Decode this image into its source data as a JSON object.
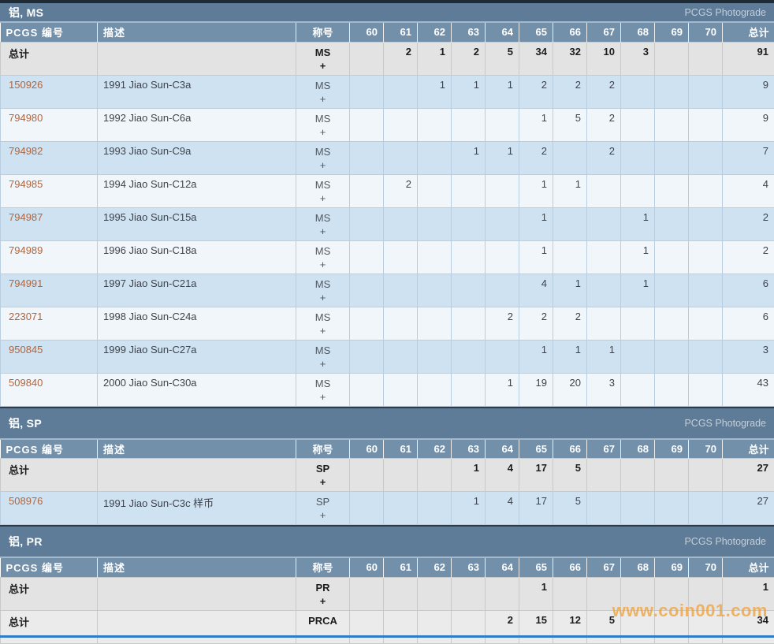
{
  "photograde_label": "PCGS Photograde",
  "watermark": "www.coin001.com",
  "total_row_label": "总计",
  "table_headers": {
    "pcgs_number": "PCGS 编号",
    "description": "描述",
    "designation": "称号",
    "grades": [
      "60",
      "61",
      "62",
      "63",
      "64",
      "65",
      "66",
      "67",
      "68",
      "69",
      "70"
    ],
    "total": "总计"
  },
  "colors": {
    "title_bar": "#5e7c97",
    "header_row": "#7390ab",
    "row_blue": "#cfe2f1",
    "row_pale": "#f1f6fa",
    "row_total": "#e3e3e3",
    "link": "#b0653e",
    "watermark": "#f0a33c",
    "bottom_edge": "#2f7cc4"
  },
  "sections": [
    {
      "title": "铝, MS",
      "rows": [
        {
          "pcgs_no": "总计",
          "is_total": true,
          "description": "",
          "designation": "MS",
          "designation_suffix": "+",
          "grades": [
            "",
            "2",
            "1",
            "2",
            "5",
            "34",
            "32",
            "10",
            "3",
            "",
            ""
          ],
          "total": "91"
        },
        {
          "pcgs_no": "150926",
          "is_total": false,
          "description": "1991 Jiao Sun-C3a",
          "designation": "MS",
          "designation_suffix": "+",
          "grades": [
            "",
            "",
            "1",
            "1",
            "1",
            "2",
            "2",
            "2",
            "",
            "",
            ""
          ],
          "total": "9"
        },
        {
          "pcgs_no": "794980",
          "is_total": false,
          "description": "1992 Jiao Sun-C6a",
          "designation": "MS",
          "designation_suffix": "+",
          "grades": [
            "",
            "",
            "",
            "",
            "",
            "1",
            "5",
            "2",
            "",
            "",
            ""
          ],
          "total": "9"
        },
        {
          "pcgs_no": "794982",
          "is_total": false,
          "description": "1993 Jiao Sun-C9a",
          "designation": "MS",
          "designation_suffix": "+",
          "grades": [
            "",
            "",
            "",
            "1",
            "1",
            "2",
            "",
            "2",
            "",
            "",
            ""
          ],
          "total": "7"
        },
        {
          "pcgs_no": "794985",
          "is_total": false,
          "description": "1994 Jiao Sun-C12a",
          "designation": "MS",
          "designation_suffix": "+",
          "grades": [
            "",
            "2",
            "",
            "",
            "",
            "1",
            "1",
            "",
            "",
            "",
            ""
          ],
          "total": "4"
        },
        {
          "pcgs_no": "794987",
          "is_total": false,
          "description": "1995 Jiao Sun-C15a",
          "designation": "MS",
          "designation_suffix": "+",
          "grades": [
            "",
            "",
            "",
            "",
            "",
            "1",
            "",
            "",
            "1",
            "",
            ""
          ],
          "total": "2"
        },
        {
          "pcgs_no": "794989",
          "is_total": false,
          "description": "1996 Jiao Sun-C18a",
          "designation": "MS",
          "designation_suffix": "+",
          "grades": [
            "",
            "",
            "",
            "",
            "",
            "1",
            "",
            "",
            "1",
            "",
            ""
          ],
          "total": "2"
        },
        {
          "pcgs_no": "794991",
          "is_total": false,
          "description": "1997 Jiao Sun-C21a",
          "designation": "MS",
          "designation_suffix": "+",
          "grades": [
            "",
            "",
            "",
            "",
            "",
            "4",
            "1",
            "",
            "1",
            "",
            ""
          ],
          "total": "6"
        },
        {
          "pcgs_no": "223071",
          "is_total": false,
          "description": "1998 Jiao Sun-C24a",
          "designation": "MS",
          "designation_suffix": "+",
          "grades": [
            "",
            "",
            "",
            "",
            "2",
            "2",
            "2",
            "",
            "",
            "",
            ""
          ],
          "total": "6"
        },
        {
          "pcgs_no": "950845",
          "is_total": false,
          "description": "1999 Jiao Sun-C27a",
          "designation": "MS",
          "designation_suffix": "+",
          "grades": [
            "",
            "",
            "",
            "",
            "",
            "1",
            "1",
            "1",
            "",
            "",
            ""
          ],
          "total": "3"
        },
        {
          "pcgs_no": "509840",
          "is_total": false,
          "description": "2000 Jiao Sun-C30a",
          "designation": "MS",
          "designation_suffix": "+",
          "grades": [
            "",
            "",
            "",
            "",
            "1",
            "19",
            "20",
            "3",
            "",
            "",
            ""
          ],
          "total": "43"
        }
      ]
    },
    {
      "title": "铝, SP",
      "rows": [
        {
          "pcgs_no": "总计",
          "is_total": true,
          "description": "",
          "designation": "SP",
          "designation_suffix": "+",
          "grades": [
            "",
            "",
            "",
            "1",
            "4",
            "17",
            "5",
            "",
            "",
            "",
            ""
          ],
          "total": "27"
        },
        {
          "pcgs_no": "508976",
          "is_total": false,
          "description": "1991 Jiao Sun-C3c 样币",
          "designation": "SP",
          "designation_suffix": "+",
          "grades": [
            "",
            "",
            "",
            "1",
            "4",
            "17",
            "5",
            "",
            "",
            "",
            ""
          ],
          "total": "27"
        }
      ]
    },
    {
      "title": "铝, PR",
      "rows": [
        {
          "pcgs_no": "总计",
          "is_total": true,
          "description": "",
          "designation": "PR",
          "designation_suffix": "+",
          "grades": [
            "",
            "",
            "",
            "",
            "",
            "1",
            "",
            "",
            "",
            "",
            ""
          ],
          "total": "1"
        },
        {
          "pcgs_no": "总计",
          "is_total": true,
          "description": "",
          "designation": "PRCA",
          "designation_suffix": "",
          "grades": [
            "",
            "",
            "",
            "",
            "2",
            "15",
            "12",
            "5",
            "",
            "",
            ""
          ],
          "total": "34"
        }
      ]
    }
  ]
}
